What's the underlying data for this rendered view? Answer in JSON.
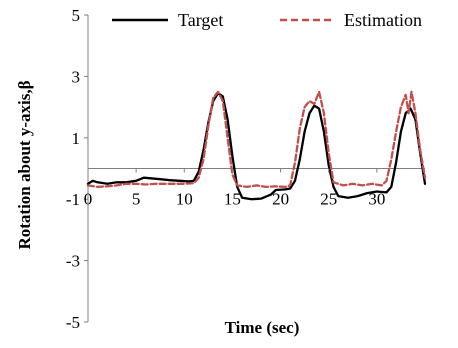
{
  "chart_data": {
    "type": "line",
    "title": "",
    "xlabel": "Time (sec)",
    "ylabel": "Rotation about y-axis,β",
    "xlim": [
      0,
      35
    ],
    "ylim": [
      -5,
      5
    ],
    "x_ticks": [
      0,
      5,
      10,
      15,
      20,
      25,
      30
    ],
    "y_ticks": [
      5,
      3,
      1,
      -1,
      -3,
      -5
    ],
    "grid": false,
    "legend_position": "top",
    "series": [
      {
        "name": "Target",
        "color": "#000000",
        "style": "solid",
        "points": [
          [
            0,
            -0.5
          ],
          [
            0.5,
            -0.4
          ],
          [
            1,
            -0.45
          ],
          [
            2,
            -0.5
          ],
          [
            3,
            -0.45
          ],
          [
            4,
            -0.45
          ],
          [
            5,
            -0.4
          ],
          [
            5.8,
            -0.3
          ],
          [
            6.5,
            -0.32
          ],
          [
            7.5,
            -0.35
          ],
          [
            8.5,
            -0.38
          ],
          [
            9.5,
            -0.4
          ],
          [
            10.5,
            -0.42
          ],
          [
            11,
            -0.4
          ],
          [
            11.5,
            -0.1
          ],
          [
            12,
            0.6
          ],
          [
            12.5,
            1.5
          ],
          [
            13,
            2.2
          ],
          [
            13.5,
            2.45
          ],
          [
            14,
            2.35
          ],
          [
            14.5,
            1.6
          ],
          [
            15,
            0.4
          ],
          [
            15.5,
            -0.6
          ],
          [
            16,
            -0.95
          ],
          [
            17,
            -1.0
          ],
          [
            18,
            -0.98
          ],
          [
            19,
            -0.85
          ],
          [
            19.5,
            -0.7
          ],
          [
            20.5,
            -0.68
          ],
          [
            21,
            -0.65
          ],
          [
            21.5,
            -0.4
          ],
          [
            22,
            0.3
          ],
          [
            22.5,
            1.2
          ],
          [
            23,
            1.8
          ],
          [
            23.5,
            2.05
          ],
          [
            24,
            1.95
          ],
          [
            24.5,
            1.2
          ],
          [
            25,
            0.1
          ],
          [
            25.5,
            -0.6
          ],
          [
            26,
            -0.9
          ],
          [
            27,
            -0.95
          ],
          [
            28,
            -0.9
          ],
          [
            29,
            -0.8
          ],
          [
            30,
            -0.75
          ],
          [
            31,
            -0.78
          ],
          [
            31.5,
            -0.6
          ],
          [
            32,
            0.2
          ],
          [
            32.5,
            1.2
          ],
          [
            33,
            1.8
          ],
          [
            33.5,
            1.95
          ],
          [
            34,
            1.6
          ],
          [
            34.5,
            0.5
          ],
          [
            35,
            -0.5
          ]
        ]
      },
      {
        "name": "Estimation",
        "color": "#c0504d",
        "style": "dashed",
        "points": [
          [
            0,
            -0.55
          ],
          [
            1,
            -0.6
          ],
          [
            2,
            -0.58
          ],
          [
            3,
            -0.55
          ],
          [
            4,
            -0.5
          ],
          [
            5,
            -0.5
          ],
          [
            6,
            -0.52
          ],
          [
            7,
            -0.5
          ],
          [
            8,
            -0.5
          ],
          [
            9,
            -0.5
          ],
          [
            10,
            -0.5
          ],
          [
            11,
            -0.48
          ],
          [
            11.5,
            -0.3
          ],
          [
            12,
            0.3
          ],
          [
            12.5,
            1.4
          ],
          [
            13,
            2.3
          ],
          [
            13.5,
            2.5
          ],
          [
            14,
            2.2
          ],
          [
            14.5,
            1.0
          ],
          [
            15,
            -0.2
          ],
          [
            15.5,
            -0.55
          ],
          [
            16.5,
            -0.6
          ],
          [
            17.5,
            -0.55
          ],
          [
            18.5,
            -0.6
          ],
          [
            19.5,
            -0.58
          ],
          [
            20.5,
            -0.6
          ],
          [
            21,
            -0.55
          ],
          [
            21.5,
            0.2
          ],
          [
            22,
            1.3
          ],
          [
            22.5,
            2.0
          ],
          [
            23,
            2.2
          ],
          [
            23.5,
            2.1
          ],
          [
            24,
            2.5
          ],
          [
            24.5,
            1.8
          ],
          [
            25,
            0.5
          ],
          [
            25.5,
            -0.45
          ],
          [
            26.5,
            -0.55
          ],
          [
            27.5,
            -0.5
          ],
          [
            28.5,
            -0.55
          ],
          [
            29.5,
            -0.5
          ],
          [
            30.5,
            -0.55
          ],
          [
            31,
            -0.4
          ],
          [
            31.5,
            0.3
          ],
          [
            32,
            1.2
          ],
          [
            32.5,
            2.0
          ],
          [
            33,
            2.4
          ],
          [
            33.3,
            1.8
          ],
          [
            33.6,
            2.5
          ],
          [
            34,
            1.8
          ],
          [
            34.5,
            0.6
          ],
          [
            35,
            -0.3
          ]
        ]
      }
    ]
  }
}
